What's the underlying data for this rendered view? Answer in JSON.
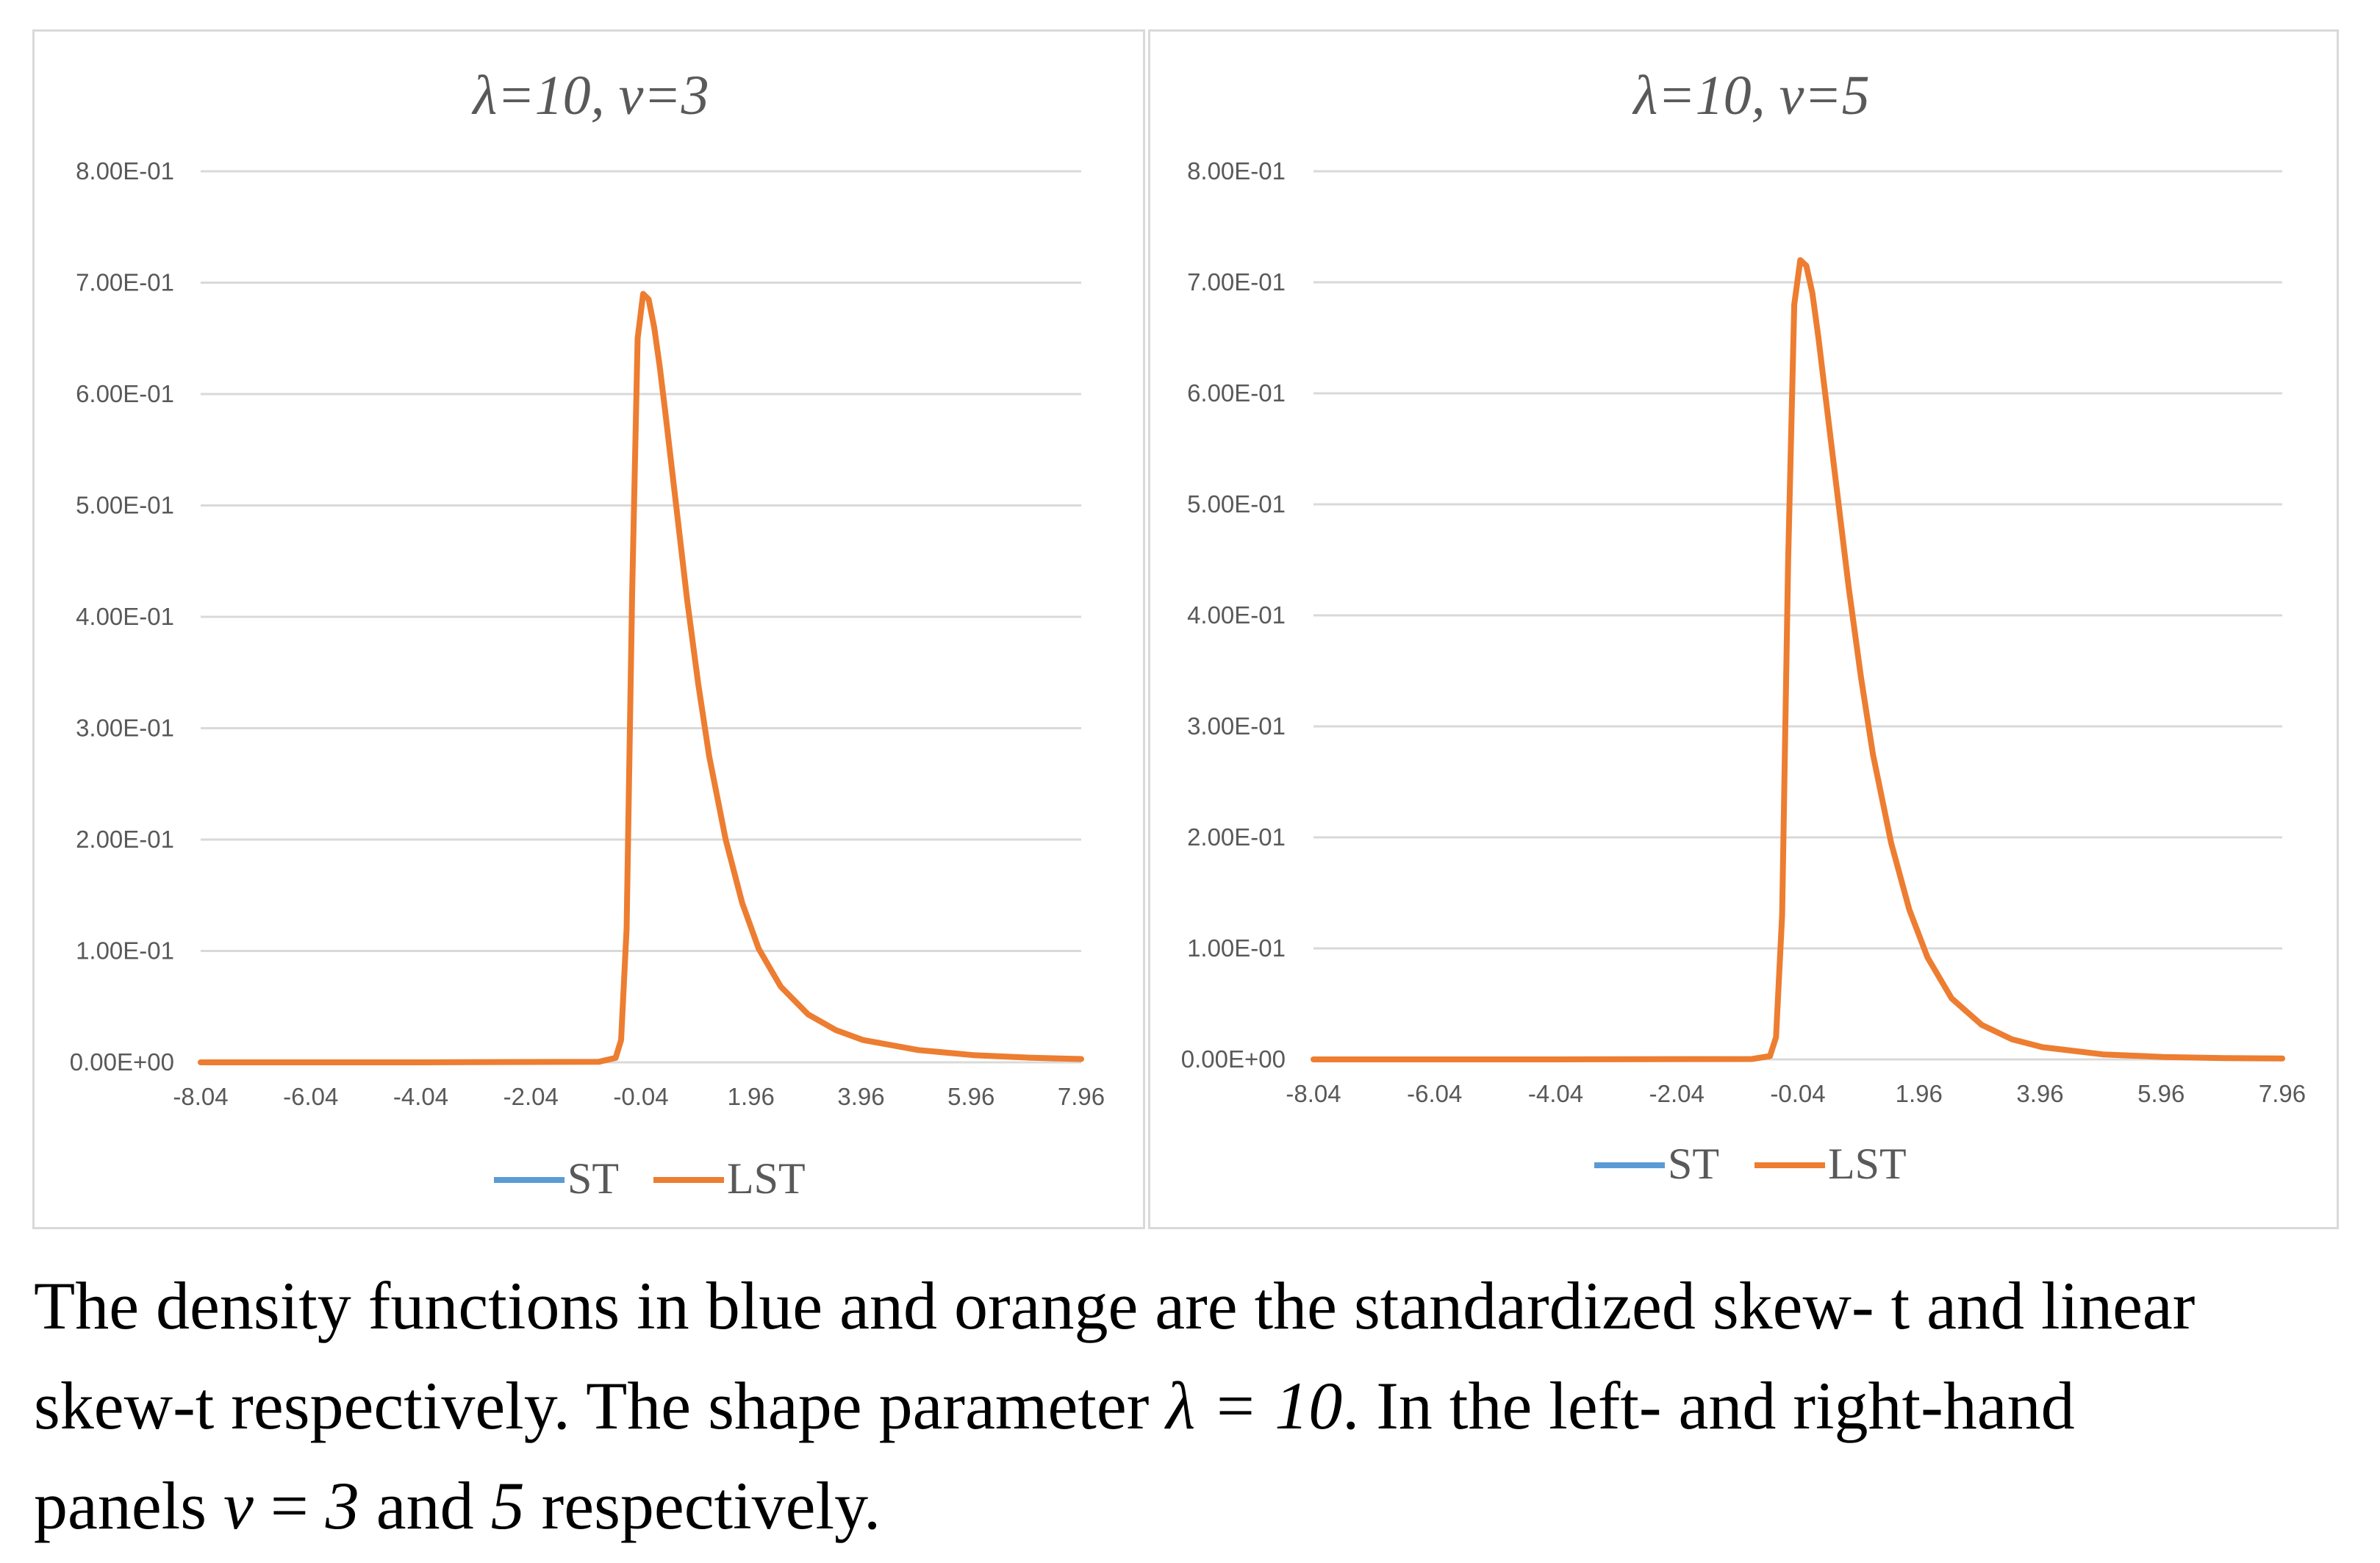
{
  "chart_data": [
    {
      "type": "line",
      "title": "λ=10, ν=3",
      "y_tick_labels": [
        "0.00E+00",
        "1.00E-01",
        "2.00E-01",
        "3.00E-01",
        "4.00E-01",
        "5.00E-01",
        "6.00E-01",
        "7.00E-01",
        "8.00E-01"
      ],
      "x_tick_labels": [
        "-8.04",
        "-6.04",
        "-4.04",
        "-2.04",
        "-0.04",
        "1.96",
        "3.96",
        "5.96",
        "7.96"
      ],
      "ylim": [
        0,
        0.8
      ],
      "xlim": [
        -8.04,
        7.96
      ],
      "grid": true,
      "legend_position": "bottom",
      "x": [
        -8.04,
        -4.04,
        -0.8,
        -0.5,
        -0.4,
        -0.3,
        -0.2,
        -0.1,
        0.0,
        0.1,
        0.2,
        0.3,
        0.4,
        0.6,
        0.8,
        1.0,
        1.2,
        1.5,
        1.8,
        2.1,
        2.5,
        3.0,
        3.5,
        4.0,
        5.0,
        6.0,
        7.0,
        7.96
      ],
      "series": [
        {
          "name": "ST",
          "color": "#5b9bd5",
          "values": [
            0,
            0,
            0.0005,
            0.004,
            0.02,
            0.12,
            0.42,
            0.65,
            0.69,
            0.685,
            0.66,
            0.625,
            0.585,
            0.5,
            0.415,
            0.34,
            0.275,
            0.2,
            0.143,
            0.102,
            0.068,
            0.043,
            0.029,
            0.02,
            0.011,
            0.0065,
            0.0042,
            0.003
          ]
        },
        {
          "name": "LST",
          "color": "#ed7d31",
          "values": [
            0,
            0,
            0.0005,
            0.004,
            0.02,
            0.12,
            0.42,
            0.65,
            0.69,
            0.685,
            0.66,
            0.625,
            0.585,
            0.5,
            0.415,
            0.34,
            0.275,
            0.2,
            0.143,
            0.102,
            0.068,
            0.043,
            0.029,
            0.02,
            0.011,
            0.0065,
            0.0042,
            0.003
          ]
        }
      ]
    },
    {
      "type": "line",
      "title": "λ=10, ν=5",
      "y_tick_labels": [
        "0.00E+00",
        "1.00E-01",
        "2.00E-01",
        "3.00E-01",
        "4.00E-01",
        "5.00E-01",
        "6.00E-01",
        "7.00E-01",
        "8.00E-01"
      ],
      "x_tick_labels": [
        "-8.04",
        "-6.04",
        "-4.04",
        "-2.04",
        "-0.04",
        "1.96",
        "3.96",
        "5.96",
        "7.96"
      ],
      "ylim": [
        0,
        0.8
      ],
      "xlim": [
        -8.04,
        7.96
      ],
      "grid": true,
      "legend_position": "bottom",
      "x": [
        -8.04,
        -4.04,
        -0.8,
        -0.5,
        -0.4,
        -0.3,
        -0.2,
        -0.1,
        0.0,
        0.1,
        0.2,
        0.3,
        0.4,
        0.6,
        0.8,
        1.0,
        1.2,
        1.5,
        1.8,
        2.1,
        2.5,
        3.0,
        3.5,
        4.0,
        5.0,
        6.0,
        7.0,
        7.96
      ],
      "series": [
        {
          "name": "ST",
          "color": "#5b9bd5",
          "values": [
            0,
            0,
            0.0003,
            0.003,
            0.02,
            0.13,
            0.45,
            0.68,
            0.72,
            0.715,
            0.69,
            0.65,
            0.605,
            0.515,
            0.425,
            0.345,
            0.275,
            0.195,
            0.135,
            0.092,
            0.055,
            0.031,
            0.018,
            0.011,
            0.0045,
            0.0022,
            0.0012,
            0.0008
          ]
        },
        {
          "name": "LST",
          "color": "#ed7d31",
          "values": [
            0,
            0,
            0.0003,
            0.003,
            0.02,
            0.13,
            0.45,
            0.68,
            0.72,
            0.715,
            0.69,
            0.65,
            0.605,
            0.515,
            0.425,
            0.345,
            0.275,
            0.195,
            0.135,
            0.092,
            0.055,
            0.031,
            0.018,
            0.011,
            0.0045,
            0.0022,
            0.0012,
            0.0008
          ]
        }
      ]
    }
  ],
  "caption": {
    "line1": "The density functions in blue and orange are the standardized skew- t and linear",
    "line2a": "skew-t respectively. The shape parameter ",
    "lambda_eq": "λ = 10",
    "line2b": ". In the left- and right-hand",
    "line3a": "panels ",
    "nu": "ν",
    "eq": " = ",
    "three": "3",
    "and": " and ",
    "five": "5",
    "line3b": " respectively."
  }
}
